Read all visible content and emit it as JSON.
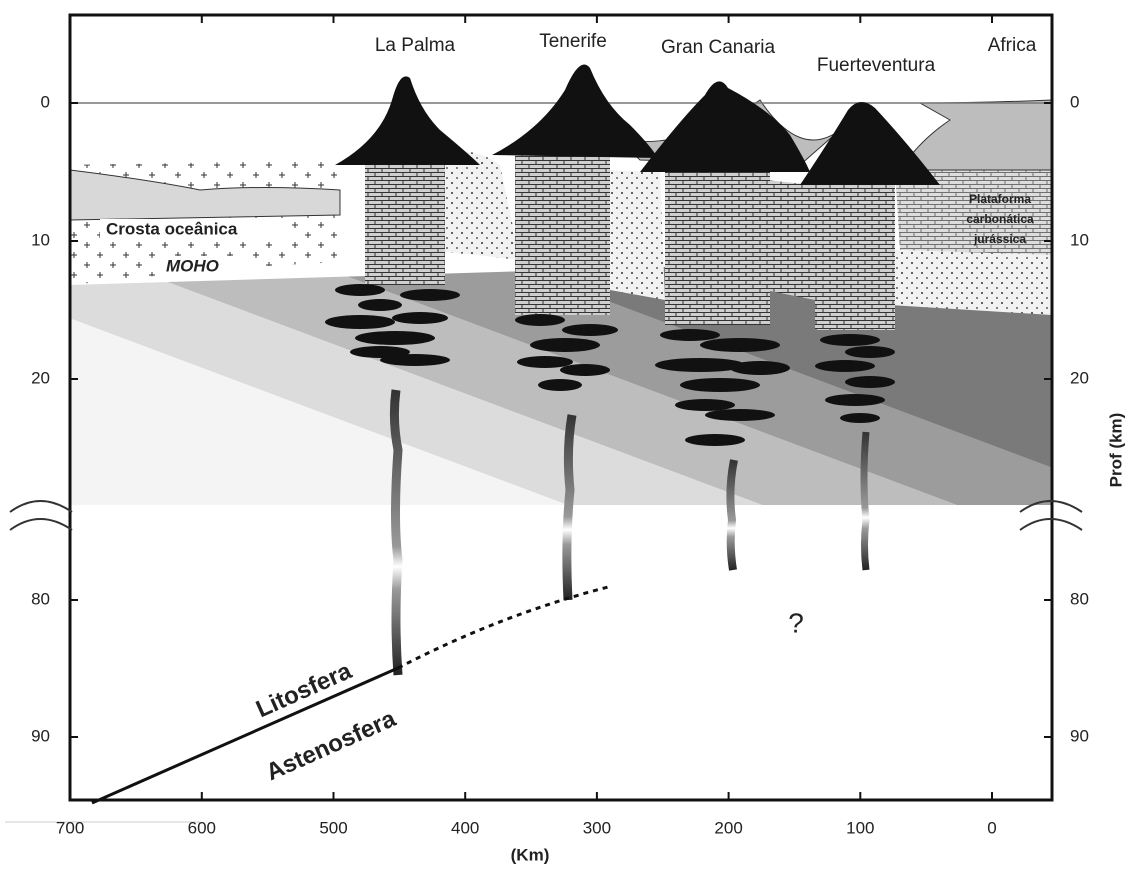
{
  "islands": [
    "La Palma",
    "Tenerife",
    "Gran Canaria",
    "Fuerteventura",
    "Africa"
  ],
  "labels": {
    "oceanic_crust": "Crosta oceânica",
    "moho": "MOHO",
    "platform": [
      "Plataforma",
      "carbonática",
      "jurássica"
    ],
    "lithosphere": "Litosfera",
    "asthenosphere": "Astenosfera",
    "unknown": "?"
  },
  "x_axis": {
    "label": "(Km)",
    "ticks": [
      700,
      600,
      500,
      400,
      300,
      200,
      100,
      0
    ]
  },
  "y_axis": {
    "label": "Prof (km)",
    "ticks": [
      0,
      10,
      20,
      80,
      90
    ]
  }
}
